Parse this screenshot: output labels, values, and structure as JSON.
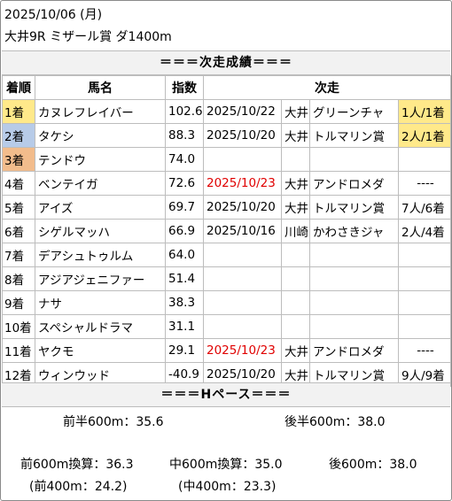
{
  "header": {
    "date": "2025/10/06 (月)",
    "race": "大井9R ミザール賞 ダ1400m"
  },
  "section_next": "＝＝＝次走成績＝＝＝",
  "columns": {
    "rank": "着順",
    "horse": "馬名",
    "index": "指数",
    "next": "次走"
  },
  "rows": [
    {
      "rank": "1着",
      "horse": "カヌレフレイバー",
      "index": "102.6",
      "date": "2025/10/22",
      "venue": "大井",
      "race": "グリーンチャ",
      "result": "1人/1着"
    },
    {
      "rank": "2着",
      "horse": "タケシ",
      "index": "88.3",
      "date": "2025/10/20",
      "venue": "大井",
      "race": "トルマリン賞",
      "result": "2人/1着"
    },
    {
      "rank": "3着",
      "horse": "テンドウ",
      "index": "74.0",
      "date": "",
      "venue": "",
      "race": "",
      "result": ""
    },
    {
      "rank": "4着",
      "horse": "ベンテイガ",
      "index": "72.6",
      "date": "2025/10/23",
      "venue": "大井",
      "race": "アンドロメダ",
      "result": "----"
    },
    {
      "rank": "5着",
      "horse": "アイズ",
      "index": "69.7",
      "date": "2025/10/20",
      "venue": "大井",
      "race": "トルマリン賞",
      "result": "7人/6着"
    },
    {
      "rank": "6着",
      "horse": "シゲルマッハ",
      "index": "66.9",
      "date": "2025/10/16",
      "venue": "川崎",
      "race": "かわさきジャ",
      "result": "2人/4着"
    },
    {
      "rank": "7着",
      "horse": "デアシュトゥルム",
      "index": "64.0",
      "date": "",
      "venue": "",
      "race": "",
      "result": ""
    },
    {
      "rank": "8着",
      "horse": "アジアジェニファー",
      "index": "51.4",
      "date": "",
      "venue": "",
      "race": "",
      "result": ""
    },
    {
      "rank": "9着",
      "horse": "ナサ",
      "index": "38.3",
      "date": "",
      "venue": "",
      "race": "",
      "result": ""
    },
    {
      "rank": "10着",
      "horse": "スペシャルドラマ",
      "index": "31.1",
      "date": "",
      "venue": "",
      "race": "",
      "result": ""
    },
    {
      "rank": "11着",
      "horse": "ヤクモ",
      "index": "29.1",
      "date": "2025/10/23",
      "venue": "大井",
      "race": "アンドロメダ",
      "result": "----"
    },
    {
      "rank": "12着",
      "horse": "ウィンウッド",
      "index": "-40.9",
      "date": "2025/10/20",
      "venue": "大井",
      "race": "トルマリン賞",
      "result": "9人/9着"
    }
  ],
  "section_pace": "＝＝＝Hペース＝＝＝",
  "pace": {
    "first_half": "前半600m：35.6",
    "second_half": "後半600m：38.0",
    "front600": "前600m換算：36.3",
    "mid600": "中600m換算：35.0",
    "back600": "後600m：38.0",
    "front400": "(前400m：24.2)",
    "mid400": "(中400m：23.3)"
  },
  "colors": {
    "first": "#ffe98a",
    "second": "#b7cbe8",
    "third": "#f2bc8c",
    "upcoming_date": "#e00000",
    "band": "#f2f2f2",
    "border": "#bdbdbd"
  }
}
